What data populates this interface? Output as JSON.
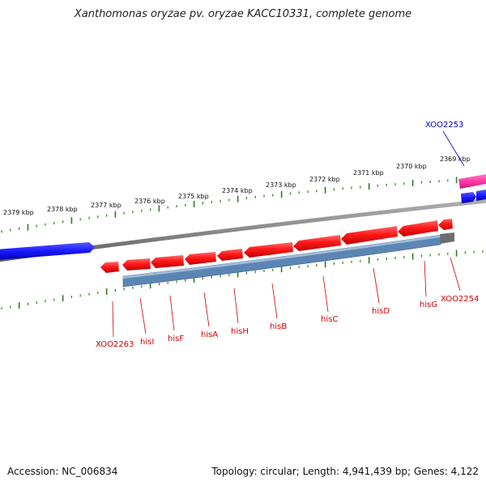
{
  "title": "Xanthomonas oryzae pv. oryzae KACC10331, complete genome",
  "footer": {
    "accession": "Accession: NC_006834",
    "topology": "Topology: circular; Length: 4,941,439 bp; Genes: 4,122"
  },
  "colors": {
    "background": "#ffffff",
    "backbone": "#888888",
    "tick": "#2e7d1e",
    "forward_cds": "#1a1aff",
    "forward_highlight": "#ff3aa8",
    "reverse_cds": "#ff1a1a",
    "his_operon_bar": "#5b86b4",
    "gene_label": "#cc0000",
    "gene_label_forward": "#0000cc"
  },
  "ticks": {
    "unit": "kbp",
    "labels": [
      "2369 kbp",
      "2370 kbp",
      "2371 kbp",
      "2372 kbp",
      "2373 kbp",
      "2374 kbp",
      "2375 kbp",
      "2376 kbp",
      "2377 kbp",
      "2378 kbp",
      "2379 kbp"
    ]
  },
  "genes": [
    {
      "name": "XOO2253",
      "strand": "forward"
    },
    {
      "name": "XOO2254",
      "strand": "reverse"
    },
    {
      "name": "hisG",
      "strand": "reverse"
    },
    {
      "name": "hisD",
      "strand": "reverse"
    },
    {
      "name": "hisC",
      "strand": "reverse"
    },
    {
      "name": "hisB",
      "strand": "reverse"
    },
    {
      "name": "hisH",
      "strand": "reverse"
    },
    {
      "name": "hisA",
      "strand": "reverse"
    },
    {
      "name": "hisF",
      "strand": "reverse"
    },
    {
      "name": "hisI",
      "strand": "reverse"
    },
    {
      "name": "XOO2263",
      "strand": "reverse"
    }
  ]
}
